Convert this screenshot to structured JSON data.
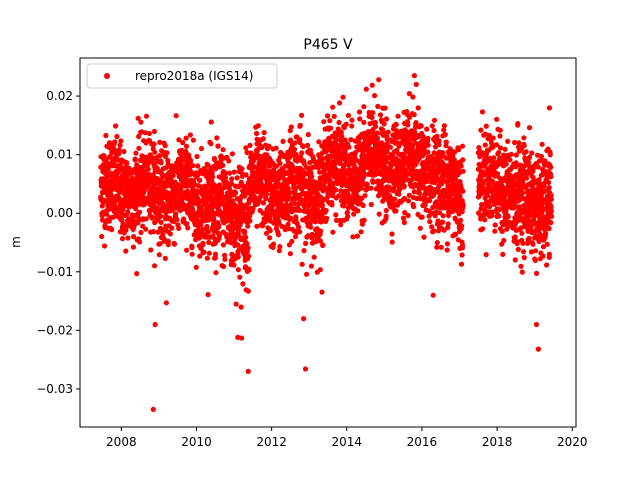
{
  "chart_data": {
    "type": "scatter",
    "title": "P465 V",
    "xlabel": "",
    "ylabel": "m",
    "xlim": [
      2006.9,
      2020.1
    ],
    "ylim": [
      -0.0365,
      0.0265
    ],
    "xticks": [
      2008,
      2010,
      2012,
      2014,
      2016,
      2018,
      2020
    ],
    "xtick_labels": [
      "2008",
      "2010",
      "2012",
      "2014",
      "2016",
      "2018",
      "2020"
    ],
    "yticks": [
      -0.03,
      -0.02,
      -0.01,
      0.0,
      0.01,
      0.02
    ],
    "ytick_labels": [
      "−0.03",
      "−0.02",
      "−0.01",
      "0.00",
      "0.01",
      "0.02"
    ],
    "grid": false,
    "legend": {
      "position": "top-left",
      "entries": [
        "repro2018a (IGS14)"
      ]
    },
    "series": [
      {
        "name": "repro2018a (IGS14)",
        "color": "#ff0000",
        "marker": "circle",
        "segments": [
          {
            "start": 2007.45,
            "end": 2008.45,
            "mean": 0.004,
            "spread": 0.004
          },
          {
            "start": 2008.45,
            "end": 2009.4,
            "mean": 0.004,
            "spread": 0.004
          },
          {
            "start": 2009.4,
            "end": 2010.4,
            "mean": 0.003,
            "spread": 0.004
          },
          {
            "start": 2010.4,
            "end": 2011.4,
            "mean": 0.0,
            "spread": 0.005
          },
          {
            "start": 2011.4,
            "end": 2012.4,
            "mean": 0.004,
            "spread": 0.004
          },
          {
            "start": 2012.4,
            "end": 2013.4,
            "mean": 0.004,
            "spread": 0.0045
          },
          {
            "start": 2013.4,
            "end": 2014.4,
            "mean": 0.007,
            "spread": 0.004
          },
          {
            "start": 2014.4,
            "end": 2015.4,
            "mean": 0.0085,
            "spread": 0.004
          },
          {
            "start": 2015.4,
            "end": 2016.4,
            "mean": 0.0075,
            "spread": 0.004
          },
          {
            "start": 2016.4,
            "end": 2017.1,
            "mean": 0.004,
            "spread": 0.0045
          },
          {
            "start": 2017.5,
            "end": 2018.4,
            "mean": 0.005,
            "spread": 0.004
          },
          {
            "start": 2018.4,
            "end": 2019.45,
            "mean": 0.002,
            "spread": 0.0045
          }
        ],
        "points": [
          [
            2008.85,
            -0.0335
          ],
          [
            2008.9,
            -0.019
          ],
          [
            2009.2,
            -0.0153
          ],
          [
            2011.1,
            -0.0212
          ],
          [
            2011.2,
            -0.0213
          ],
          [
            2011.38,
            -0.027
          ],
          [
            2012.85,
            -0.018
          ],
          [
            2012.9,
            -0.0266
          ],
          [
            2013.9,
            0.0198
          ],
          [
            2014.85,
            0.0228
          ],
          [
            2015.8,
            0.0235
          ],
          [
            2015.85,
            0.022
          ],
          [
            2019.1,
            -0.0232
          ],
          [
            2019.05,
            -0.019
          ],
          [
            2018.55,
            0.0153
          ],
          [
            2008.45,
            0.0162
          ],
          [
            2016.3,
            -0.014
          ],
          [
            2009.6,
            0.0095
          ]
        ]
      }
    ]
  }
}
